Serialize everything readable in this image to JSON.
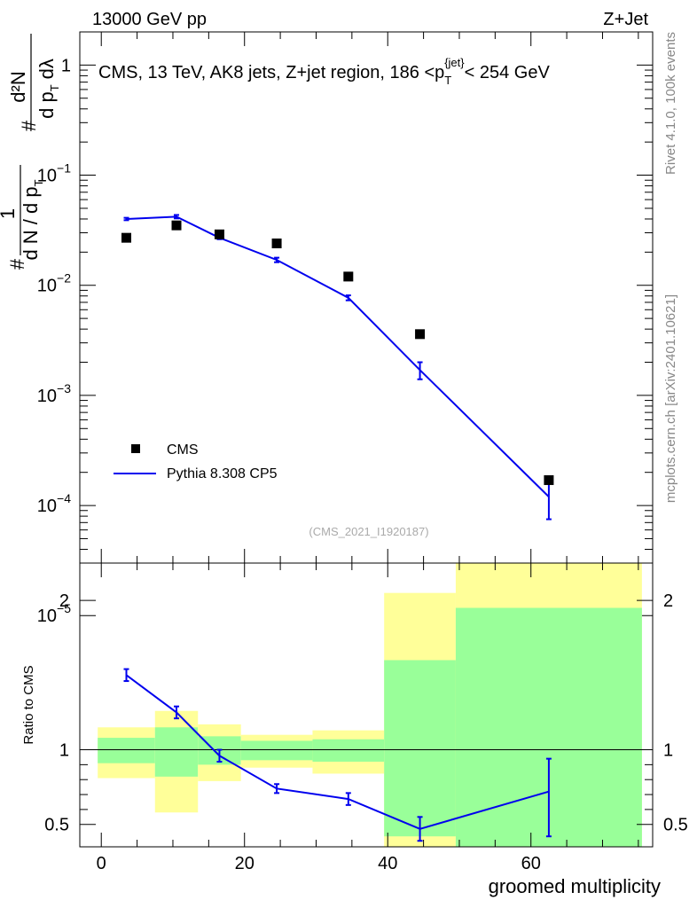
{
  "header": {
    "left_label": "13000 GeV pp",
    "right_label": "Z+Jet"
  },
  "side_labels": {
    "rivet": "Rivet 4.1.0,  100k events",
    "mcplots": "mcplots.cern.ch [arXiv:2401.10621]"
  },
  "chart_data": [
    {
      "type": "line",
      "panel": "main",
      "title": "CMS, 13 TeV, AK8 jets, Z+jet region, 186 <p_T^{jet}< 254 GeV",
      "title_parts": {
        "prefix": "CMS, 13 TeV, AK8 jets, Z+jet region, 186 <p",
        "sub": "T",
        "sup": "{jet}",
        "suffix": "< 254 GeV"
      },
      "watermark": "(CMS_2021_I1920187)",
      "ylabel_parts": {
        "hash": "#",
        "one": "1",
        "lower": "d N / d p",
        "T": "T",
        "hash2": "#",
        "d2N": "d²N",
        "dpt": "d p",
        "dlambda": "dλ"
      },
      "yscale": "log",
      "ylim": [
        3e-05,
        2
      ],
      "xlim": [
        -3,
        77
      ],
      "yticks": [
        {
          "value": 1,
          "label": "1",
          "sup": ""
        },
        {
          "value": 0.1,
          "label": "10",
          "sup": "−1"
        },
        {
          "value": 0.01,
          "label": "10",
          "sup": "−2"
        },
        {
          "value": 0.001,
          "label": "10",
          "sup": "−3"
        },
        {
          "value": 0.0001,
          "label": "10",
          "sup": "−4"
        },
        {
          "value": 1e-05,
          "label": "10",
          "sup": "−5"
        }
      ],
      "legend": [
        {
          "label": "CMS",
          "marker": "square",
          "color": "#000000"
        },
        {
          "label": "Pythia 8.308 CP5",
          "marker": "line",
          "color": "#0000ee"
        }
      ],
      "legend_position": "bottom-left",
      "series": [
        {
          "name": "CMS",
          "x": [
            3.5,
            10.5,
            16.5,
            24.5,
            34.5,
            44.5,
            62.5
          ],
          "y": [
            0.027,
            0.035,
            0.029,
            0.024,
            0.012,
            0.0036,
            0.00017
          ]
        },
        {
          "name": "Pythia 8.308 CP5",
          "x": [
            3.5,
            10.5,
            16.5,
            24.5,
            34.5,
            44.5,
            62.5
          ],
          "y": [
            0.04,
            0.042,
            0.027,
            0.017,
            0.0077,
            0.0017,
            0.00012
          ],
          "yerr_low": [
            0.001,
            0.0015,
            0.0008,
            0.0008,
            0.0004,
            0.0003,
            4.5e-05
          ],
          "yerr_high": [
            0.001,
            0.0015,
            0.0008,
            0.0008,
            0.0004,
            0.0003,
            4.5e-05
          ]
        }
      ]
    },
    {
      "type": "line",
      "panel": "ratio",
      "ylabel": "Ratio to CMS",
      "xlabel": "groomed multiplicity",
      "ylim": [
        0.35,
        2.25
      ],
      "xlim": [
        -3,
        77
      ],
      "xticks": [
        0,
        20,
        40,
        60
      ],
      "xtick_labels": [
        "0",
        "20",
        "40",
        "60"
      ],
      "yticks": [
        0.5,
        1,
        2
      ],
      "ytick_labels": [
        "0.5",
        "1",
        "2"
      ],
      "reference_line": 1,
      "band_colors": {
        "outer": "#ffff99",
        "inner": "#99ff99"
      },
      "bands": [
        {
          "x_low": -0.5,
          "x_high": 7.5,
          "outer": [
            0.81,
            1.15
          ],
          "inner": [
            0.91,
            1.08
          ]
        },
        {
          "x_low": 7.5,
          "x_high": 13.5,
          "outer": [
            0.58,
            1.26
          ],
          "inner": [
            0.82,
            1.15
          ]
        },
        {
          "x_low": 13.5,
          "x_high": 19.5,
          "outer": [
            0.79,
            1.17
          ],
          "inner": [
            0.9,
            1.09
          ]
        },
        {
          "x_low": 19.5,
          "x_high": 29.5,
          "outer": [
            0.88,
            1.1
          ],
          "inner": [
            0.93,
            1.06
          ]
        },
        {
          "x_low": 29.5,
          "x_high": 39.5,
          "outer": [
            0.84,
            1.13
          ],
          "inner": [
            0.92,
            1.07
          ]
        },
        {
          "x_low": 39.5,
          "x_high": 49.5,
          "outer": [
            0.35,
            2.05
          ],
          "inner": [
            0.42,
            1.6
          ]
        },
        {
          "x_low": 49.5,
          "x_high": 75.5,
          "outer": [
            0.35,
            2.25
          ],
          "inner": [
            0.35,
            1.95
          ]
        }
      ],
      "series": [
        {
          "name": "Pythia 8.308 CP5",
          "x": [
            3.5,
            10.5,
            16.5,
            24.5,
            34.5,
            44.5,
            62.5
          ],
          "y": [
            1.5,
            1.25,
            0.96,
            0.74,
            0.67,
            0.47,
            0.72
          ],
          "yerr_low": [
            0.04,
            0.04,
            0.04,
            0.03,
            0.04,
            0.08,
            0.3
          ],
          "yerr_high": [
            0.04,
            0.04,
            0.04,
            0.03,
            0.04,
            0.08,
            0.22
          ]
        }
      ]
    }
  ]
}
